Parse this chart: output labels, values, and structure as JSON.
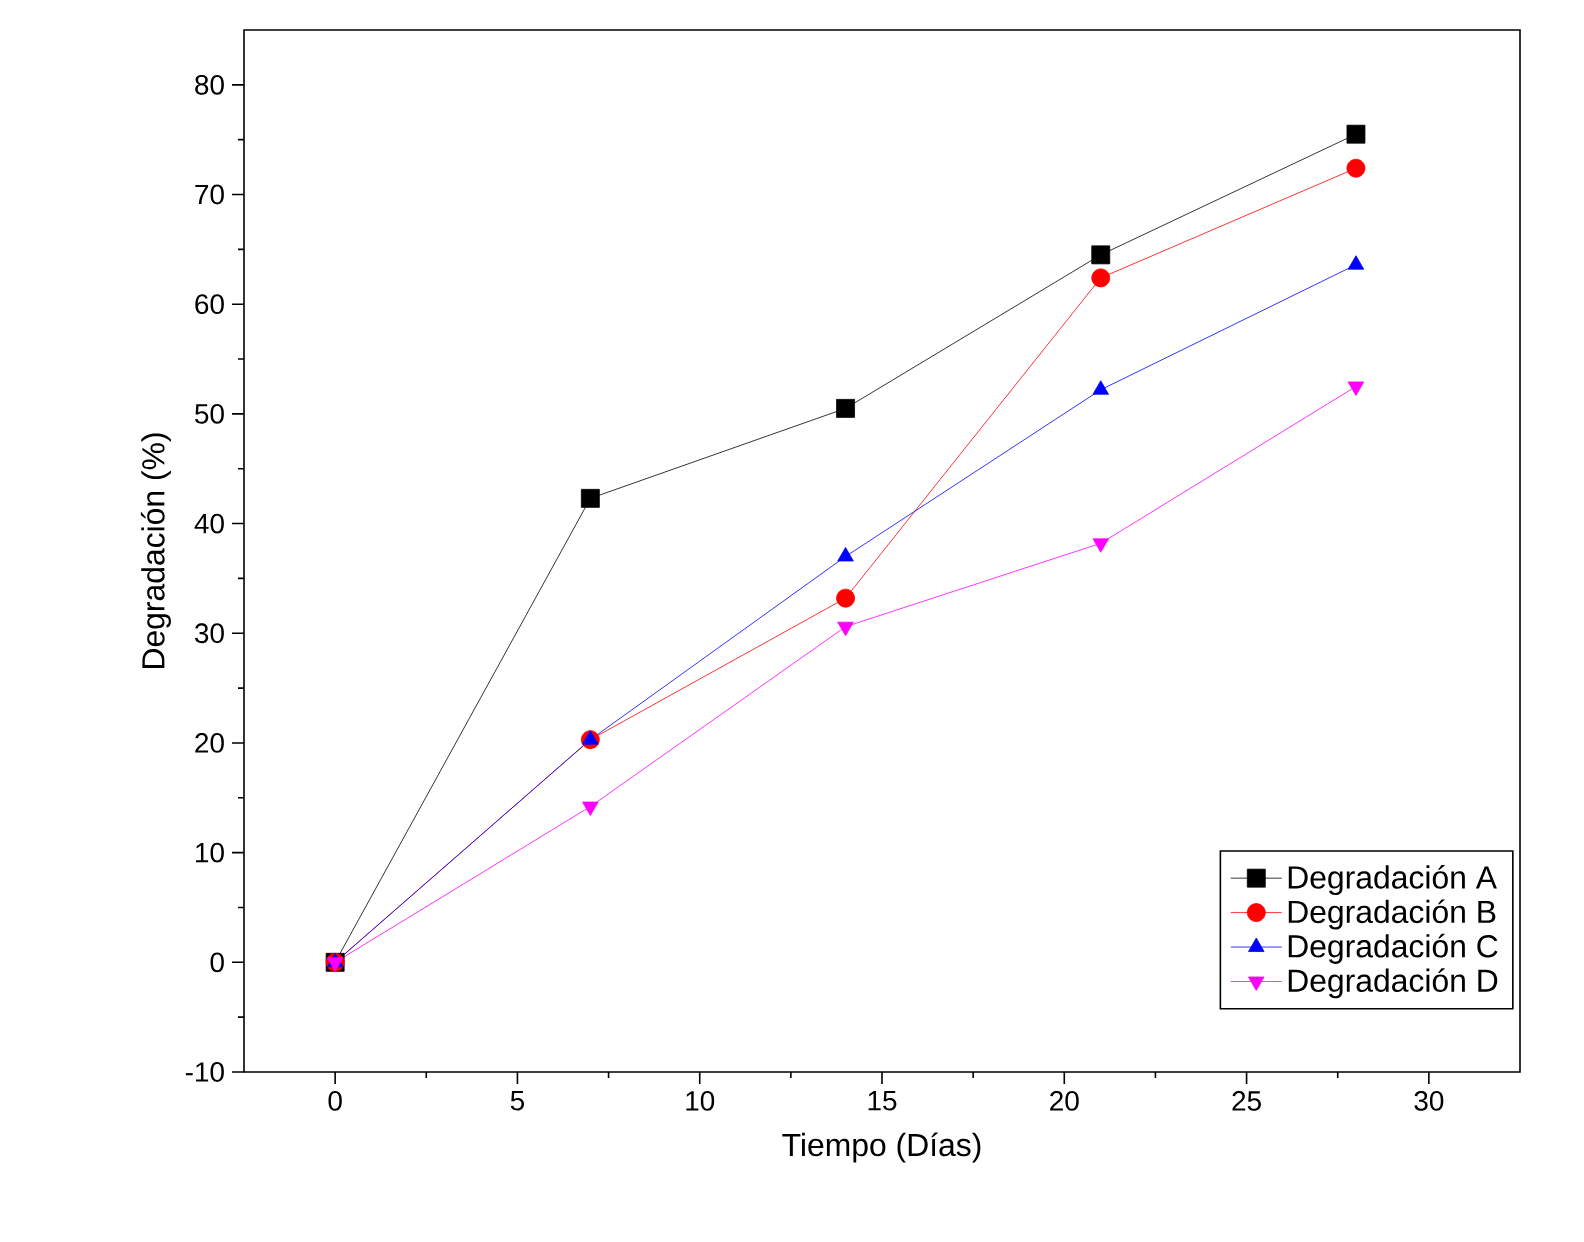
{
  "chart_data": {
    "type": "line",
    "xlabel": "Tiempo (Días)",
    "ylabel": "Degradación (%)",
    "xlim": [
      -2.5,
      32.5
    ],
    "ylim": [
      -10,
      85
    ],
    "xticks": [
      0,
      5,
      10,
      15,
      20,
      25,
      30
    ],
    "yticks": [
      -10,
      0,
      10,
      20,
      30,
      40,
      50,
      60,
      70,
      80
    ],
    "legend": "bottom right",
    "grid": false,
    "line_style": "solid",
    "series": [
      {
        "name": "Degradación A",
        "color": "#000000",
        "marker": "square",
        "x": [
          0,
          7,
          14,
          21,
          28
        ],
        "values": [
          0,
          42.3,
          50.5,
          64.5,
          75.5
        ]
      },
      {
        "name": "Degradación B",
        "color": "#ff0000",
        "marker": "circle",
        "x": [
          0,
          7,
          14,
          21,
          28
        ],
        "values": [
          0,
          20.3,
          33.2,
          62.4,
          72.4
        ]
      },
      {
        "name": "Degradación C",
        "color": "#0000ff",
        "marker": "triangle",
        "x": [
          0,
          7,
          14,
          21,
          28
        ],
        "values": [
          0,
          20.3,
          37.0,
          52.2,
          63.6
        ]
      },
      {
        "name": "Degradación D",
        "color": "#ff00ff",
        "marker": "triangle down",
        "x": [
          0,
          7,
          14,
          21,
          28
        ],
        "values": [
          0,
          14.2,
          30.6,
          38.2,
          52.5
        ]
      }
    ]
  }
}
